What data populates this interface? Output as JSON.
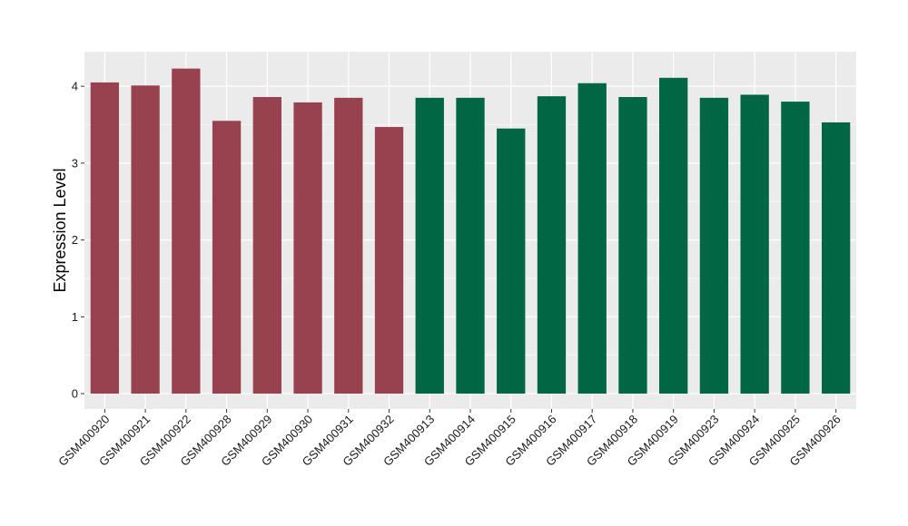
{
  "chart_data": {
    "type": "bar",
    "title": "",
    "xlabel": "",
    "ylabel": "Expression Level",
    "ylim": [
      -0.2,
      4.45
    ],
    "yticks": [
      0,
      1,
      2,
      3,
      4
    ],
    "ytick_labels": [
      "0",
      "1",
      "2",
      "3",
      "4"
    ],
    "grid": true,
    "legend": "none",
    "categories": [
      "GSM400920",
      "GSM400921",
      "GSM400922",
      "GSM400928",
      "GSM400929",
      "GSM400930",
      "GSM400931",
      "GSM400932",
      "GSM400913",
      "GSM400914",
      "GSM400915",
      "GSM400916",
      "GSM400917",
      "GSM400918",
      "GSM400919",
      "GSM400923",
      "GSM400924",
      "GSM400925",
      "GSM400926"
    ],
    "values": [
      4.05,
      4.01,
      4.23,
      3.55,
      3.86,
      3.79,
      3.85,
      3.47,
      3.85,
      3.85,
      3.45,
      3.87,
      4.04,
      3.86,
      4.11,
      3.85,
      3.89,
      3.8,
      3.53
    ],
    "bar_colors": [
      "#99424f",
      "#99424f",
      "#99424f",
      "#99424f",
      "#99424f",
      "#99424f",
      "#99424f",
      "#99424f",
      "#006644",
      "#006644",
      "#006644",
      "#006644",
      "#006644",
      "#006644",
      "#006644",
      "#006644",
      "#006644",
      "#006644",
      "#006644"
    ]
  },
  "colors": {
    "panel_background": "#ebebeb",
    "grid": "#ffffff",
    "group_a": "#99424f",
    "group_b": "#006644"
  }
}
